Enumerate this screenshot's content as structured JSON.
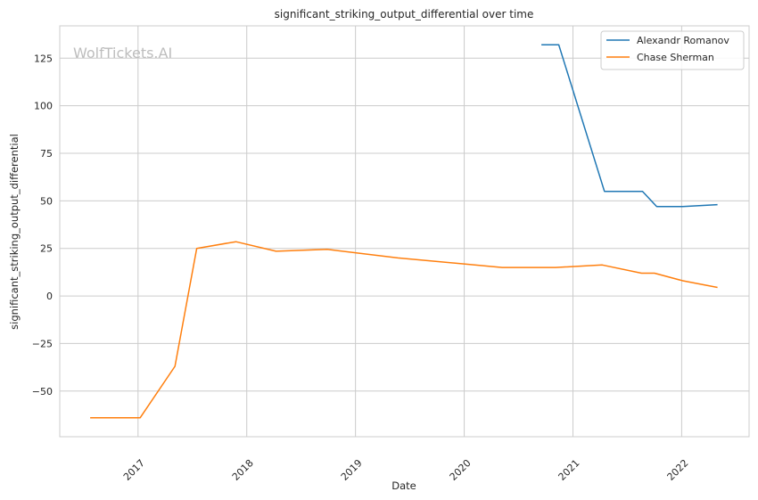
{
  "chart_data": {
    "type": "line",
    "title": "significant_striking_output_differential over time",
    "xlabel": "Date",
    "ylabel": "significant_striking_output_differential",
    "watermark": "WolfTickets.AI",
    "xlim": [
      2016.28,
      2022.62
    ],
    "ylim": [
      -74,
      142
    ],
    "x_ticks": [
      {
        "value": 2017,
        "label": "2017"
      },
      {
        "value": 2018,
        "label": "2018"
      },
      {
        "value": 2019,
        "label": "2019"
      },
      {
        "value": 2020,
        "label": "2020"
      },
      {
        "value": 2021,
        "label": "2021"
      },
      {
        "value": 2022,
        "label": "2022"
      }
    ],
    "y_ticks": [
      {
        "value": 125,
        "label": "125"
      },
      {
        "value": 100,
        "label": "100"
      },
      {
        "value": 75,
        "label": "75"
      },
      {
        "value": 50,
        "label": "50"
      },
      {
        "value": 25,
        "label": "25"
      },
      {
        "value": 0,
        "label": "0"
      },
      {
        "value": -25,
        "label": "−25"
      },
      {
        "value": -50,
        "label": "−50"
      }
    ],
    "grid": true,
    "legend_position": "top-right",
    "series": [
      {
        "name": "Alexandr Romanov",
        "color": "#1f77b4",
        "x": [
          2020.71,
          2020.87,
          2021.29,
          2021.64,
          2021.77,
          2022.01,
          2022.33
        ],
        "y": [
          132,
          132,
          55,
          55,
          47,
          47,
          48
        ]
      },
      {
        "name": "Chase Sherman",
        "color": "#ff7f0e",
        "x": [
          2016.56,
          2017.02,
          2017.34,
          2017.54,
          2017.9,
          2018.27,
          2018.74,
          2019.39,
          2020.35,
          2020.84,
          2021.27,
          2021.63,
          2021.75,
          2022.01,
          2022.33
        ],
        "y": [
          -64,
          -64,
          -37,
          25,
          28.5,
          23.5,
          24.5,
          20,
          15,
          15,
          16.3,
          12,
          12,
          8,
          4.5
        ]
      }
    ]
  }
}
